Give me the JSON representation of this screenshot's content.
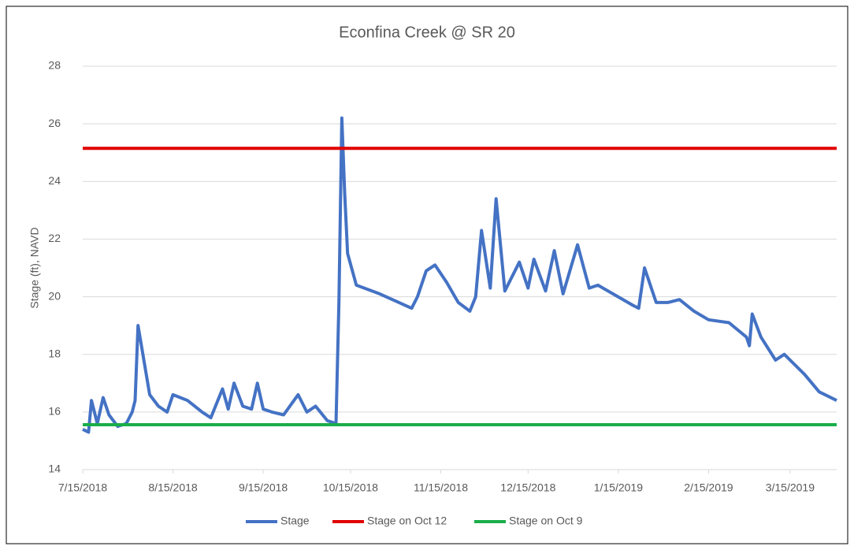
{
  "chart_data": {
    "type": "line",
    "title": "Econfina Creek @ SR 20",
    "y_label": "Stage (ft), NAVD",
    "xlim": [
      "7/15/2018",
      "3/31/2019"
    ],
    "xticks": [
      "7/15/2018",
      "8/15/2018",
      "9/15/2018",
      "10/15/2018",
      "11/15/2018",
      "12/15/2018",
      "1/15/2019",
      "2/15/2019",
      "3/15/2019"
    ],
    "ylim": [
      14,
      28
    ],
    "yticks": [
      14,
      16,
      18,
      20,
      22,
      24,
      26,
      28
    ],
    "grid": true,
    "legend": "bottom",
    "x": [
      "7/15/2018",
      "7/17/2018",
      "7/18/2018",
      "7/20/2018",
      "7/22/2018",
      "7/24/2018",
      "7/27/2018",
      "7/30/2018",
      "8/1/2018",
      "8/2/2018",
      "8/3/2018",
      "8/5/2018",
      "8/7/2018",
      "8/10/2018",
      "8/13/2018",
      "8/15/2018",
      "8/20/2018",
      "8/25/2018",
      "8/28/2018",
      "8/30/2018",
      "9/1/2018",
      "9/3/2018",
      "9/5/2018",
      "9/8/2018",
      "9/11/2018",
      "9/13/2018",
      "9/15/2018",
      "9/18/2018",
      "9/22/2018",
      "9/27/2018",
      "9/30/2018",
      "10/3/2018",
      "10/7/2018",
      "10/10/2018",
      "10/11/2018",
      "10/12/2018",
      "10/13/2018",
      "10/14/2018",
      "10/17/2018",
      "10/25/2018",
      "11/5/2018",
      "11/7/2018",
      "11/10/2018",
      "11/13/2018",
      "11/17/2018",
      "11/21/2018",
      "11/25/2018",
      "11/27/2018",
      "11/29/2018",
      "12/2/2018",
      "12/4/2018",
      "12/7/2018",
      "12/12/2018",
      "12/15/2018",
      "12/17/2018",
      "12/21/2018",
      "12/24/2018",
      "12/27/2018",
      "1/1/2019",
      "1/5/2019",
      "1/8/2019",
      "1/20/2019",
      "1/22/2019",
      "1/24/2019",
      "1/28/2019",
      "2/1/2019",
      "2/5/2019",
      "2/10/2019",
      "2/15/2019",
      "2/22/2019",
      "2/28/2019",
      "3/1/2019",
      "3/2/2019",
      "3/5/2019",
      "3/10/2019",
      "3/13/2019",
      "3/20/2019",
      "3/25/2019",
      "3/31/2019"
    ],
    "series": [
      {
        "name": "Stage",
        "color": "#4472c4",
        "values": [
          15.4,
          15.3,
          16.4,
          15.6,
          16.5,
          15.9,
          15.5,
          15.6,
          16.0,
          16.4,
          19.0,
          17.8,
          16.6,
          16.2,
          16.0,
          16.6,
          16.4,
          16.0,
          15.8,
          16.3,
          16.8,
          16.1,
          17.0,
          16.2,
          16.1,
          17.0,
          16.1,
          16.0,
          15.9,
          16.6,
          16.0,
          16.2,
          15.7,
          15.6,
          19.8,
          26.2,
          23.6,
          21.5,
          20.4,
          20.1,
          19.6,
          20.0,
          20.9,
          21.1,
          20.5,
          19.8,
          19.5,
          20.0,
          22.3,
          20.3,
          23.4,
          20.2,
          21.2,
          20.3,
          21.3,
          20.2,
          21.6,
          20.1,
          21.8,
          20.3,
          20.4,
          19.7,
          19.6,
          21.0,
          19.8,
          19.8,
          19.9,
          19.5,
          19.2,
          19.1,
          18.6,
          18.3,
          19.4,
          18.6,
          17.8,
          18.0,
          17.3,
          16.7,
          16.4
        ]
      },
      {
        "name": "Stage on Oct 12",
        "color": "#e00000",
        "value": 25.15
      },
      {
        "name": "Stage on Oct 9",
        "color": "#1aae48",
        "value": 15.56
      }
    ]
  }
}
